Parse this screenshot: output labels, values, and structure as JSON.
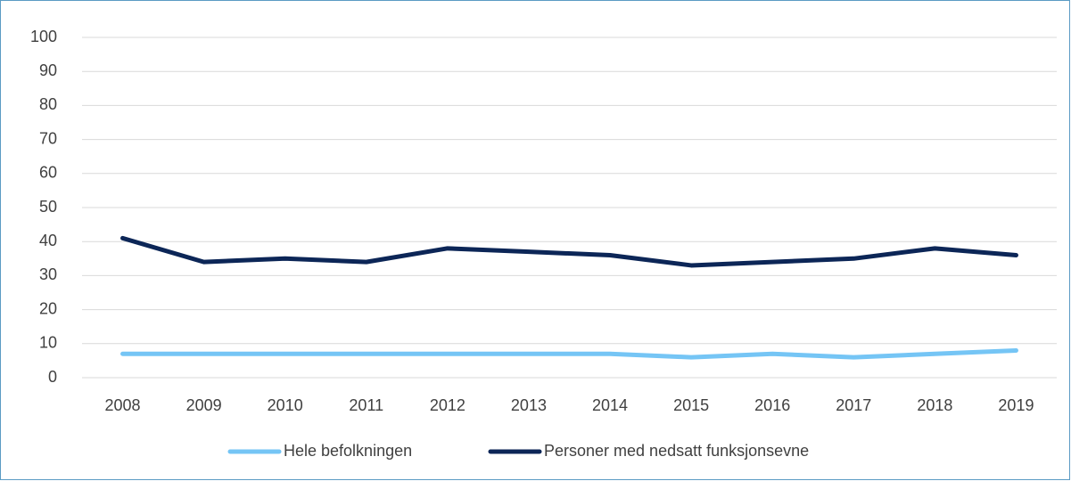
{
  "chart_data": {
    "type": "line",
    "categories": [
      "2008",
      "2009",
      "2010",
      "2011",
      "2012",
      "2013",
      "2014",
      "2015",
      "2016",
      "2017",
      "2018",
      "2019"
    ],
    "series": [
      {
        "name": "Hele befolkningen",
        "color": "#75c5f5",
        "values": [
          7,
          7,
          7,
          7,
          7,
          7,
          7,
          6,
          7,
          6,
          7,
          8
        ]
      },
      {
        "name": "Personer med nedsatt funksjonsevne",
        "color": "#0c2657",
        "values": [
          41,
          34,
          35,
          34,
          38,
          37,
          36,
          33,
          34,
          35,
          38,
          36
        ]
      }
    ],
    "ylim": [
      0,
      100
    ],
    "yticks": [
      0,
      10,
      20,
      30,
      40,
      50,
      60,
      70,
      80,
      90,
      100
    ],
    "grid": true,
    "legend": "bottom"
  }
}
